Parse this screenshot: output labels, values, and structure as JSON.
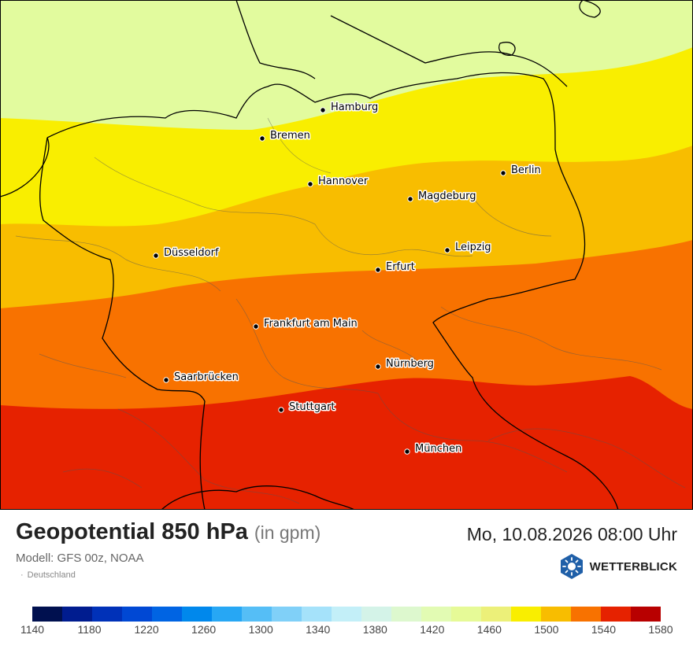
{
  "title": "Geopotential 850 hPa",
  "unit": "(in gpm)",
  "model": "Modell: GFS 00z, NOAA",
  "region": "Deutschland",
  "region_bullet": "·",
  "datetime": "Mo, 10.08.2026 08:00 Uhr",
  "brand": "WETTERBLICK",
  "cities": [
    {
      "name": "Hamburg"
    },
    {
      "name": "Bremen"
    },
    {
      "name": "Berlin"
    },
    {
      "name": "Hannover"
    },
    {
      "name": "Magdeburg"
    },
    {
      "name": "Düsseldorf"
    },
    {
      "name": "Leipzig"
    },
    {
      "name": "Erfurt"
    },
    {
      "name": "Frankfurt am Main"
    },
    {
      "name": "Nürnberg"
    },
    {
      "name": "Saarbrücken"
    },
    {
      "name": "Stuttgart"
    },
    {
      "name": "München"
    }
  ],
  "bands": [
    {
      "range": "1420-1460",
      "color": "#e2fb9e"
    },
    {
      "range": "1460-1500",
      "color": "#f9ee00"
    },
    {
      "range": "1500-1520",
      "color": "#f8bd00"
    },
    {
      "range": "1520-1540",
      "color": "#f87200"
    },
    {
      "range": "1540-1560",
      "color": "#e62200"
    }
  ],
  "colorscale": {
    "colors": [
      "#00104f",
      "#001c8f",
      "#0031b8",
      "#0048d4",
      "#0064e3",
      "#0088ec",
      "#27a7f4",
      "#55bef6",
      "#80d0f8",
      "#a5e2fa",
      "#c3eff8",
      "#d4f3e8",
      "#ddf8ce",
      "#e2fbb3",
      "#e6fa97",
      "#ecf079",
      "#f9ee00",
      "#f8bd00",
      "#f87200",
      "#e62200",
      "#b80000"
    ],
    "ticks": [
      "1140",
      "1180",
      "1220",
      "1260",
      "1300",
      "1340",
      "1380",
      "1420",
      "1460",
      "1500",
      "1540",
      "1580"
    ]
  }
}
